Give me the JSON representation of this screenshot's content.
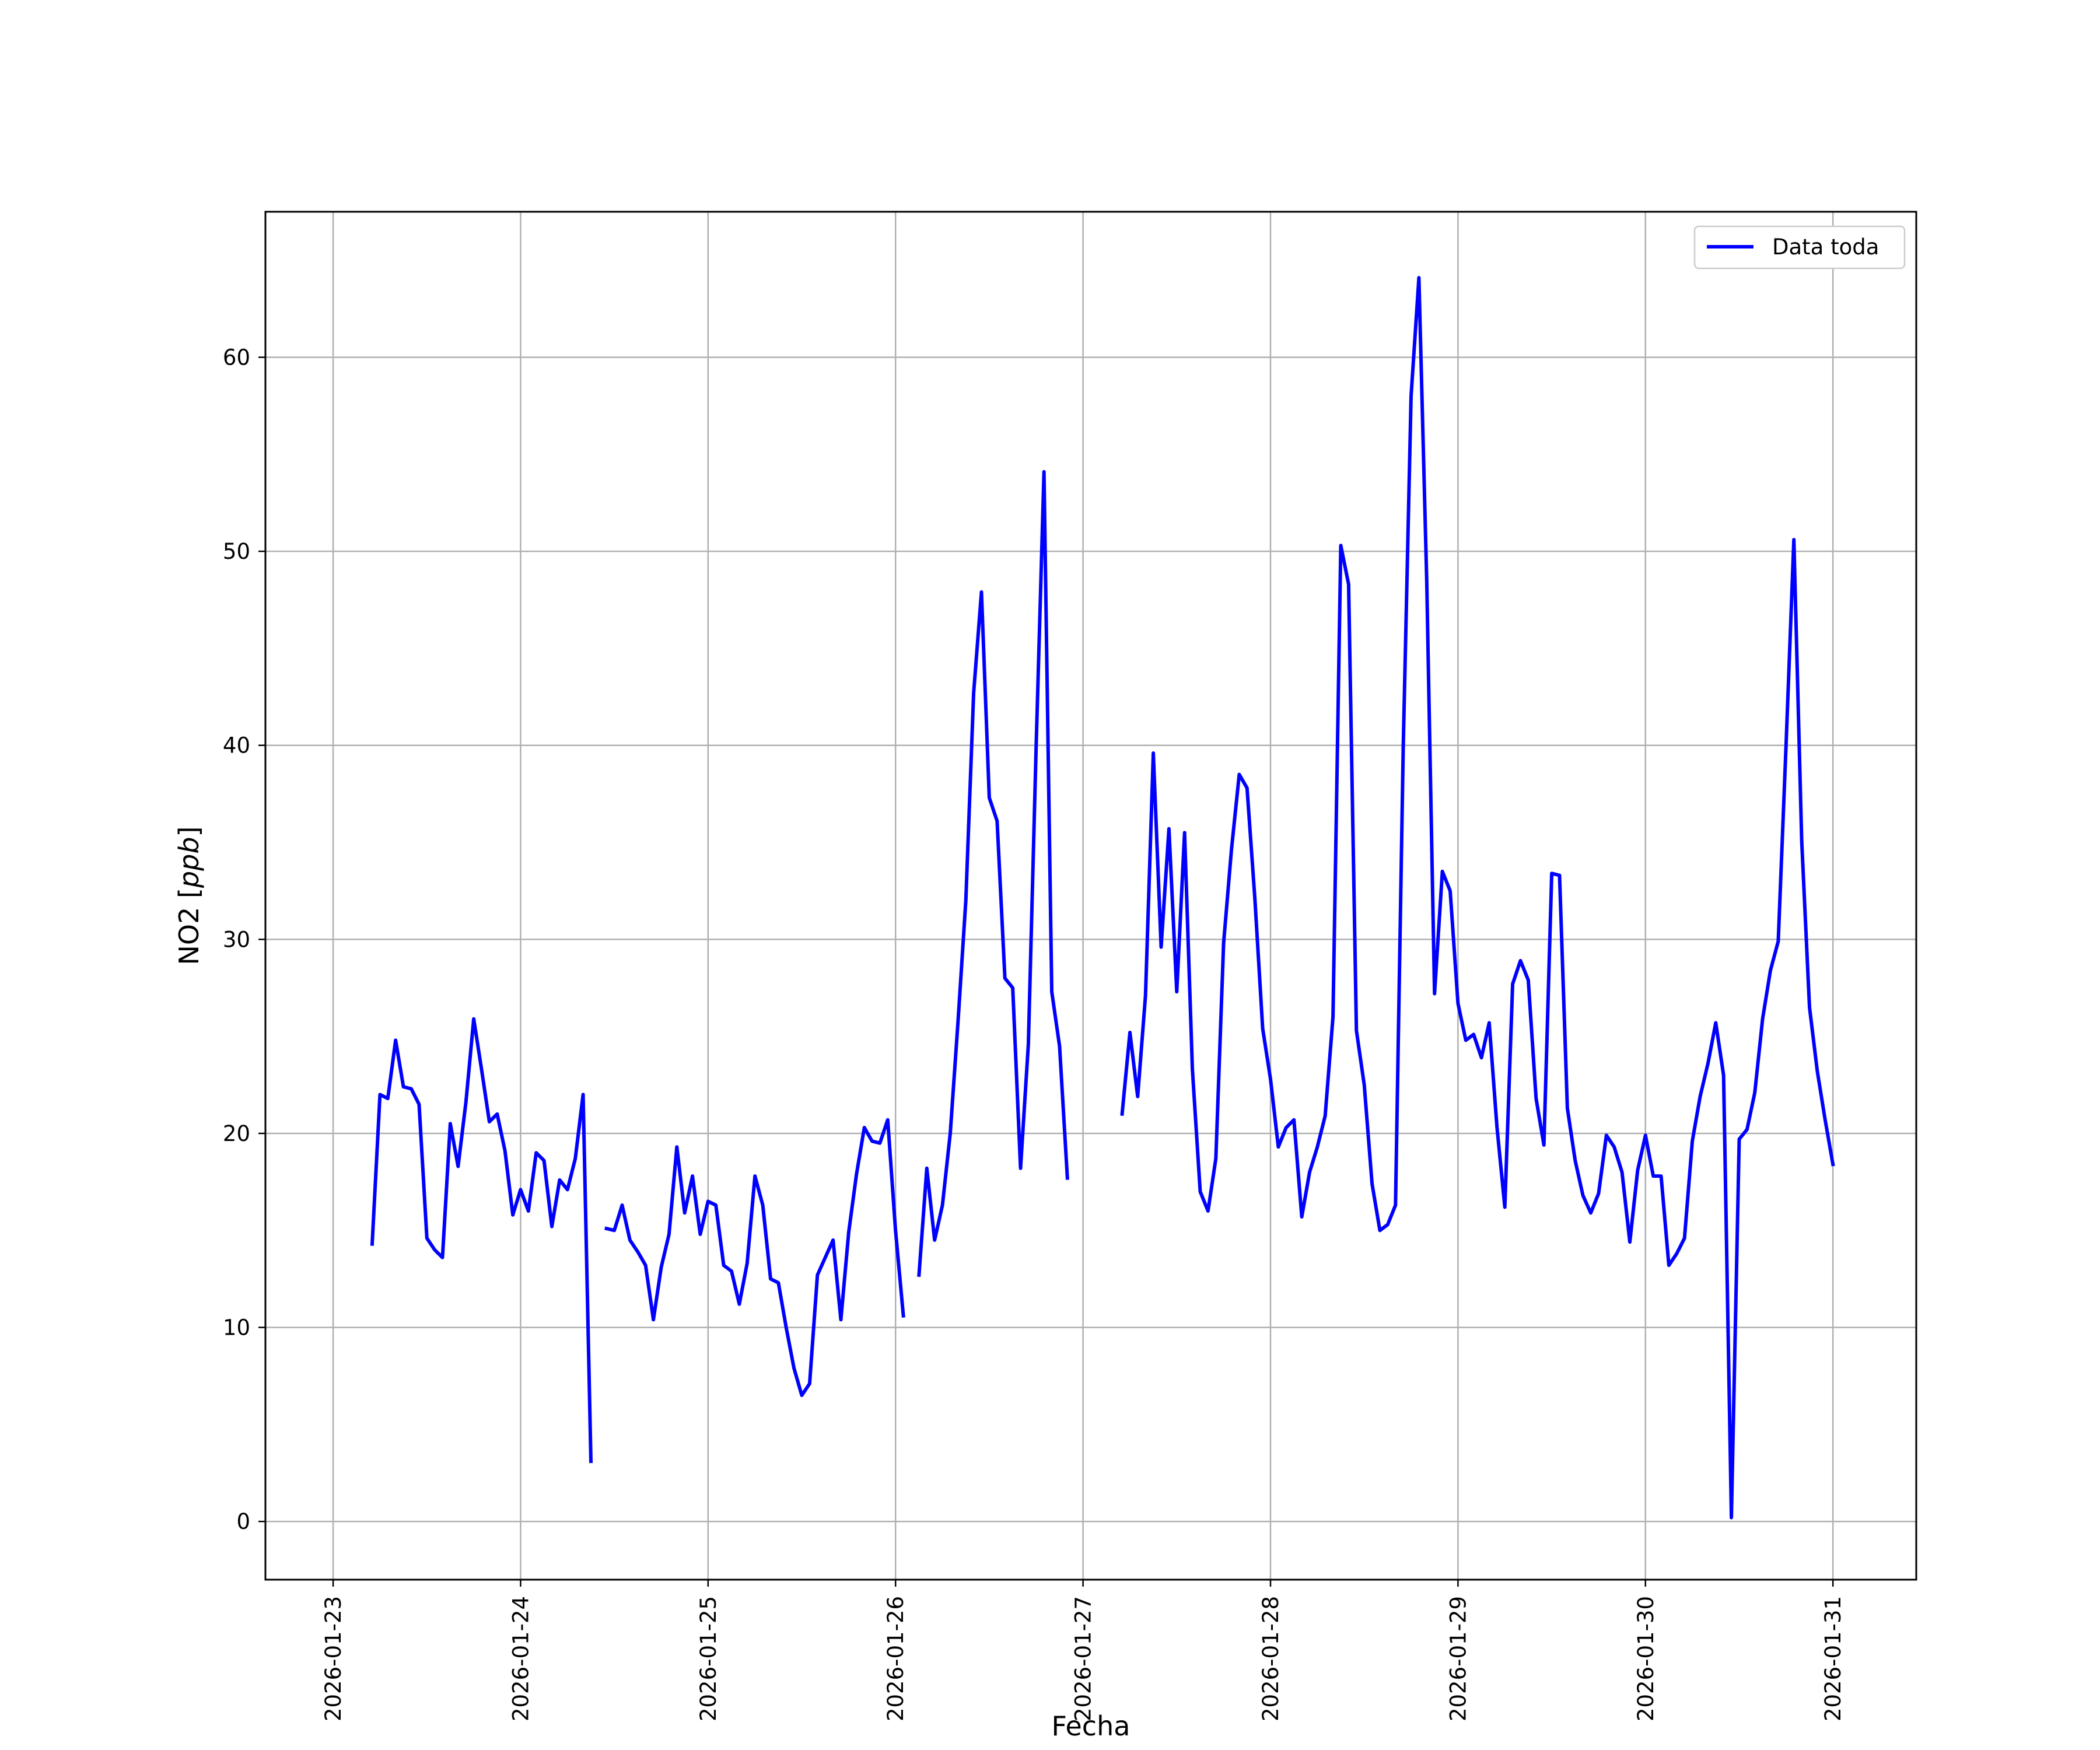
{
  "chart_data": {
    "type": "line",
    "title": "",
    "xlabel": "Fecha",
    "ylabel": "NO2 [ppb]",
    "ylabel_main": "NO2 [",
    "ylabel_unit": "ppb",
    "ylabel_close": "]",
    "xlim": [
      "2026-01-22T15:20",
      "2026-01-31T10:40"
    ],
    "ylim": [
      -3.0,
      67.5
    ],
    "grid": true,
    "legend_position": "top-right",
    "x_ticks": [
      "2026-01-23",
      "2026-01-24",
      "2026-01-25",
      "2026-01-26",
      "2026-01-27",
      "2026-01-28",
      "2026-01-29",
      "2026-01-30",
      "2026-01-31"
    ],
    "y_ticks": [
      0,
      10,
      20,
      30,
      40,
      50,
      60
    ],
    "series": [
      {
        "name": "Data toda",
        "color": "#0000ff",
        "points": [
          [
            "2026-01-23T05:00",
            14.3
          ],
          [
            "2026-01-23T06:00",
            22.0
          ],
          [
            "2026-01-23T07:00",
            21.8
          ],
          [
            "2026-01-23T08:00",
            24.8
          ],
          [
            "2026-01-23T09:00",
            22.4
          ],
          [
            "2026-01-23T10:00",
            22.3
          ],
          [
            "2026-01-23T11:00",
            21.5
          ],
          [
            "2026-01-23T12:00",
            14.6
          ],
          [
            "2026-01-23T13:00",
            14.0
          ],
          [
            "2026-01-23T14:00",
            13.6
          ],
          [
            "2026-01-23T15:00",
            20.5
          ],
          [
            "2026-01-23T16:00",
            18.3
          ],
          [
            "2026-01-23T17:00",
            21.6
          ],
          [
            "2026-01-23T18:00",
            25.9
          ],
          [
            "2026-01-23T19:00",
            23.3
          ],
          [
            "2026-01-23T20:00",
            20.6
          ],
          [
            "2026-01-23T21:00",
            21.0
          ],
          [
            "2026-01-23T22:00",
            19.1
          ],
          [
            "2026-01-23T23:00",
            15.8
          ],
          [
            "2026-01-24T00:00",
            17.1
          ],
          [
            "2026-01-24T01:00",
            16.0
          ],
          [
            "2026-01-24T02:00",
            19.0
          ],
          [
            "2026-01-24T03:00",
            18.6
          ],
          [
            "2026-01-24T04:00",
            15.2
          ],
          [
            "2026-01-24T05:00",
            17.6
          ],
          [
            "2026-01-24T06:00",
            17.1
          ],
          [
            "2026-01-24T07:00",
            18.7
          ],
          [
            "2026-01-24T08:00",
            22.0
          ],
          [
            "2026-01-24T09:00",
            3.1
          ],
          [
            "2026-01-24T10:00",
            null
          ],
          [
            "2026-01-24T11:00",
            15.1
          ],
          [
            "2026-01-24T12:00",
            15.0
          ],
          [
            "2026-01-24T13:00",
            16.3
          ],
          [
            "2026-01-24T14:00",
            14.5
          ],
          [
            "2026-01-24T15:00",
            13.9
          ],
          [
            "2026-01-24T16:00",
            13.2
          ],
          [
            "2026-01-24T17:00",
            10.4
          ],
          [
            "2026-01-24T18:00",
            13.1
          ],
          [
            "2026-01-24T19:00",
            14.8
          ],
          [
            "2026-01-24T20:00",
            19.3
          ],
          [
            "2026-01-24T21:00",
            15.9
          ],
          [
            "2026-01-24T22:00",
            17.8
          ],
          [
            "2026-01-24T23:00",
            14.8
          ],
          [
            "2026-01-25T00:00",
            16.5
          ],
          [
            "2026-01-25T01:00",
            16.3
          ],
          [
            "2026-01-25T02:00",
            13.2
          ],
          [
            "2026-01-25T03:00",
            12.9
          ],
          [
            "2026-01-25T04:00",
            11.2
          ],
          [
            "2026-01-25T05:00",
            13.3
          ],
          [
            "2026-01-25T06:00",
            17.8
          ],
          [
            "2026-01-25T07:00",
            16.3
          ],
          [
            "2026-01-25T08:00",
            12.5
          ],
          [
            "2026-01-25T09:00",
            12.3
          ],
          [
            "2026-01-25T10:00",
            10.0
          ],
          [
            "2026-01-25T11:00",
            7.9
          ],
          [
            "2026-01-25T12:00",
            6.5
          ],
          [
            "2026-01-25T13:00",
            7.1
          ],
          [
            "2026-01-25T14:00",
            12.7
          ],
          [
            "2026-01-25T15:00",
            13.6
          ],
          [
            "2026-01-25T16:00",
            14.5
          ],
          [
            "2026-01-25T17:00",
            10.4
          ],
          [
            "2026-01-25T18:00",
            14.9
          ],
          [
            "2026-01-25T19:00",
            17.9
          ],
          [
            "2026-01-25T20:00",
            20.3
          ],
          [
            "2026-01-25T21:00",
            19.6
          ],
          [
            "2026-01-25T22:00",
            19.5
          ],
          [
            "2026-01-25T23:00",
            20.7
          ],
          [
            "2026-01-26T00:00",
            15.0
          ],
          [
            "2026-01-26T01:00",
            10.6
          ],
          [
            "2026-01-26T02:00",
            null
          ],
          [
            "2026-01-26T03:00",
            12.7
          ],
          [
            "2026-01-26T04:00",
            18.2
          ],
          [
            "2026-01-26T05:00",
            14.5
          ],
          [
            "2026-01-26T06:00",
            16.3
          ],
          [
            "2026-01-26T07:00",
            20.0
          ],
          [
            "2026-01-26T08:00",
            25.8
          ],
          [
            "2026-01-26T09:00",
            32.0
          ],
          [
            "2026-01-26T10:00",
            42.7
          ],
          [
            "2026-01-26T11:00",
            47.9
          ],
          [
            "2026-01-26T12:00",
            37.3
          ],
          [
            "2026-01-26T13:00",
            36.1
          ],
          [
            "2026-01-26T14:00",
            28.0
          ],
          [
            "2026-01-26T15:00",
            27.5
          ],
          [
            "2026-01-26T16:00",
            18.2
          ],
          [
            "2026-01-26T17:00",
            24.6
          ],
          [
            "2026-01-26T18:00",
            40.0
          ],
          [
            "2026-01-26T19:00",
            54.1
          ],
          [
            "2026-01-26T20:00",
            27.3
          ],
          [
            "2026-01-26T21:00",
            24.5
          ],
          [
            "2026-01-26T22:00",
            17.7
          ],
          [
            "2026-01-26T23:00",
            null
          ],
          [
            "2026-01-27T05:00",
            21.0
          ],
          [
            "2026-01-27T06:00",
            25.2
          ],
          [
            "2026-01-27T07:00",
            21.9
          ],
          [
            "2026-01-27T08:00",
            27.1
          ],
          [
            "2026-01-27T09:00",
            39.6
          ],
          [
            "2026-01-27T10:00",
            29.6
          ],
          [
            "2026-01-27T11:00",
            35.7
          ],
          [
            "2026-01-27T12:00",
            27.3
          ],
          [
            "2026-01-27T13:00",
            35.5
          ],
          [
            "2026-01-27T14:00",
            23.3
          ],
          [
            "2026-01-27T15:00",
            17.0
          ],
          [
            "2026-01-27T16:00",
            16.0
          ],
          [
            "2026-01-27T17:00",
            18.7
          ],
          [
            "2026-01-27T18:00",
            29.8
          ],
          [
            "2026-01-27T19:00",
            34.6
          ],
          [
            "2026-01-27T20:00",
            38.5
          ],
          [
            "2026-01-27T21:00",
            37.8
          ],
          [
            "2026-01-27T22:00",
            32.1
          ],
          [
            "2026-01-27T23:00",
            25.4
          ],
          [
            "2026-01-28T00:00",
            22.8
          ],
          [
            "2026-01-28T01:00",
            19.3
          ],
          [
            "2026-01-28T02:00",
            20.3
          ],
          [
            "2026-01-28T03:00",
            20.7
          ],
          [
            "2026-01-28T04:00",
            15.7
          ],
          [
            "2026-01-28T05:00",
            18.0
          ],
          [
            "2026-01-28T06:00",
            19.3
          ],
          [
            "2026-01-28T07:00",
            20.9
          ],
          [
            "2026-01-28T08:00",
            26.0
          ],
          [
            "2026-01-28T09:00",
            50.3
          ],
          [
            "2026-01-28T10:00",
            48.3
          ],
          [
            "2026-01-28T11:00",
            25.3
          ],
          [
            "2026-01-28T12:00",
            22.5
          ],
          [
            "2026-01-28T13:00",
            17.4
          ],
          [
            "2026-01-28T14:00",
            15.0
          ],
          [
            "2026-01-28T15:00",
            15.3
          ],
          [
            "2026-01-28T16:00",
            16.3
          ],
          [
            "2026-01-28T17:00",
            40.0
          ],
          [
            "2026-01-28T18:00",
            58.0
          ],
          [
            "2026-01-28T19:00",
            64.1
          ],
          [
            "2026-01-28T20:00",
            48.5
          ],
          [
            "2026-01-28T21:00",
            27.2
          ],
          [
            "2026-01-28T22:00",
            33.5
          ],
          [
            "2026-01-28T23:00",
            32.5
          ],
          [
            "2026-01-29T00:00",
            26.7
          ],
          [
            "2026-01-29T01:00",
            24.8
          ],
          [
            "2026-01-29T02:00",
            25.1
          ],
          [
            "2026-01-29T03:00",
            23.9
          ],
          [
            "2026-01-29T04:00",
            25.7
          ],
          [
            "2026-01-29T05:00",
            20.3
          ],
          [
            "2026-01-29T06:00",
            16.2
          ],
          [
            "2026-01-29T07:00",
            27.7
          ],
          [
            "2026-01-29T08:00",
            28.9
          ],
          [
            "2026-01-29T09:00",
            27.9
          ],
          [
            "2026-01-29T10:00",
            21.8
          ],
          [
            "2026-01-29T11:00",
            19.4
          ],
          [
            "2026-01-29T12:00",
            33.4
          ],
          [
            "2026-01-29T13:00",
            33.3
          ],
          [
            "2026-01-29T14:00",
            21.3
          ],
          [
            "2026-01-29T15:00",
            18.6
          ],
          [
            "2026-01-29T16:00",
            16.8
          ],
          [
            "2026-01-29T17:00",
            15.9
          ],
          [
            "2026-01-29T18:00",
            16.9
          ],
          [
            "2026-01-29T19:00",
            19.9
          ],
          [
            "2026-01-29T20:00",
            19.3
          ],
          [
            "2026-01-29T21:00",
            18.0
          ],
          [
            "2026-01-29T22:00",
            14.4
          ],
          [
            "2026-01-29T23:00",
            18.1
          ],
          [
            "2026-01-30T00:00",
            19.9
          ],
          [
            "2026-01-30T01:00",
            17.8
          ],
          [
            "2026-01-30T02:00",
            17.8
          ],
          [
            "2026-01-30T03:00",
            13.2
          ],
          [
            "2026-01-30T04:00",
            13.8
          ],
          [
            "2026-01-30T05:00",
            14.6
          ],
          [
            "2026-01-30T06:00",
            19.6
          ],
          [
            "2026-01-30T07:00",
            21.9
          ],
          [
            "2026-01-30T08:00",
            23.6
          ],
          [
            "2026-01-30T09:00",
            25.7
          ],
          [
            "2026-01-30T10:00",
            23.0
          ],
          [
            "2026-01-30T11:00",
            0.2
          ],
          [
            "2026-01-30T12:00",
            19.7
          ],
          [
            "2026-01-30T13:00",
            20.2
          ],
          [
            "2026-01-30T14:00",
            22.1
          ],
          [
            "2026-01-30T15:00",
            25.9
          ],
          [
            "2026-01-30T16:00",
            28.4
          ],
          [
            "2026-01-30T17:00",
            29.9
          ],
          [
            "2026-01-30T18:00",
            40.0
          ],
          [
            "2026-01-30T19:00",
            50.6
          ],
          [
            "2026-01-30T20:00",
            35.1
          ],
          [
            "2026-01-30T21:00",
            26.5
          ],
          [
            "2026-01-30T22:00",
            23.2
          ],
          [
            "2026-01-30T23:00",
            20.7
          ],
          [
            "2026-01-31T00:00",
            18.4
          ]
        ]
      }
    ]
  }
}
